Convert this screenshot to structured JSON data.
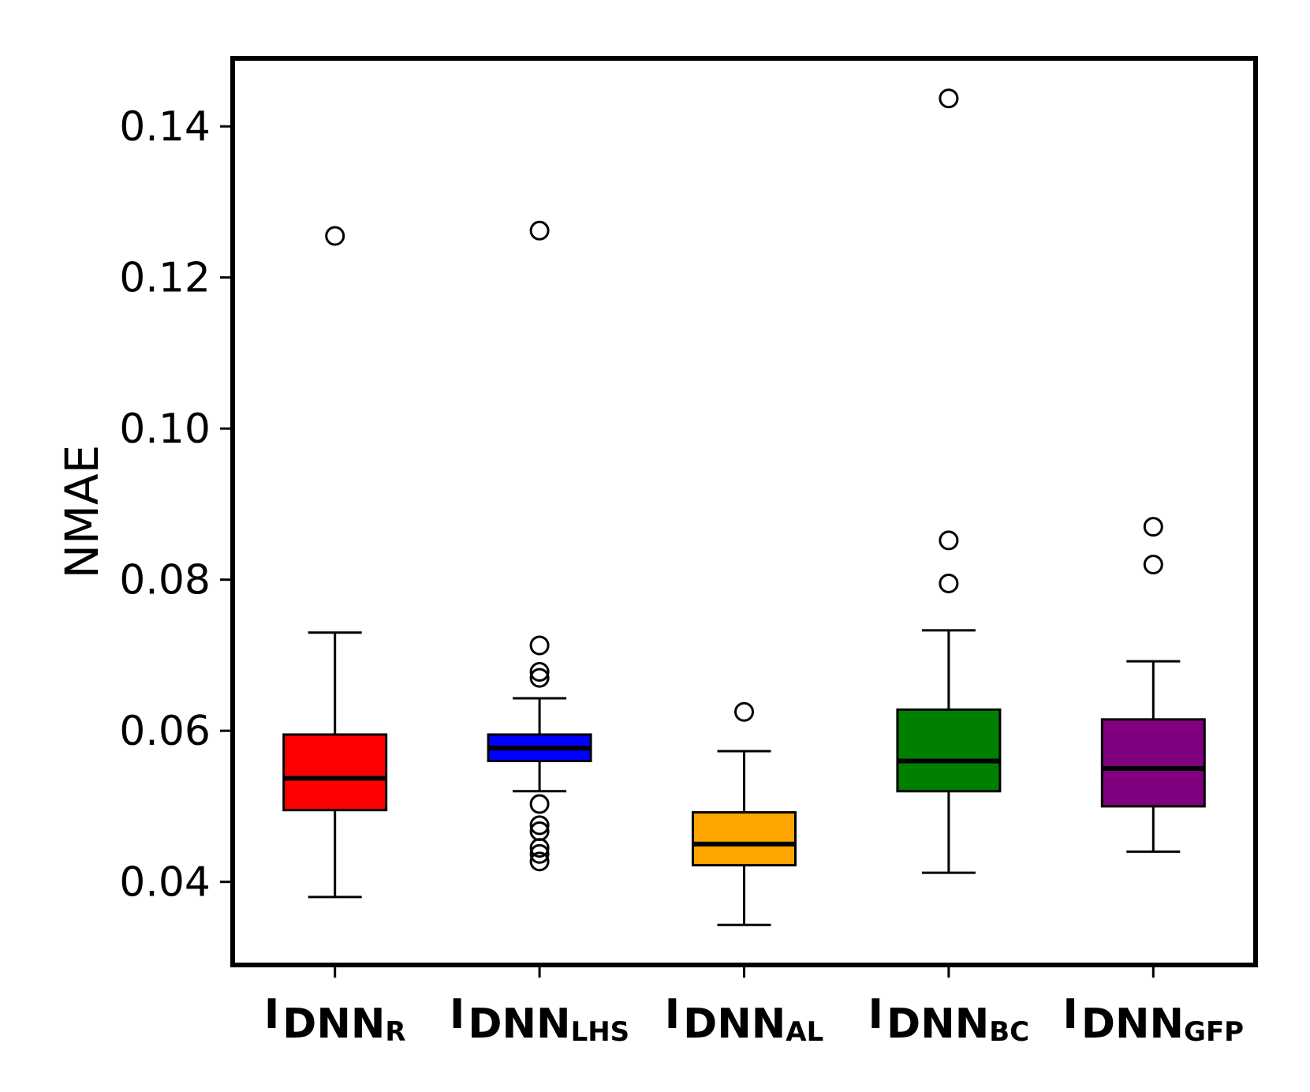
{
  "chart_data": {
    "type": "boxplot",
    "title": "",
    "xlabel": "",
    "ylabel": "NMAE",
    "ylim": [
      0.029,
      0.149
    ],
    "yticks": [
      0.04,
      0.06,
      0.08,
      0.1,
      0.12,
      0.14
    ],
    "ytick_labels": [
      "0.04",
      "0.06",
      "0.08",
      "0.10",
      "0.12",
      "0.14"
    ],
    "grid": false,
    "categories": [
      {
        "main": "I",
        "sub": "DNN",
        "subsub": "R"
      },
      {
        "main": "I",
        "sub": "DNN",
        "subsub": "LHS"
      },
      {
        "main": "I",
        "sub": "DNN",
        "subsub": "AL"
      },
      {
        "main": "I",
        "sub": "DNN",
        "subsub": "BC"
      },
      {
        "main": "I",
        "sub": "DNN",
        "subsub": "GFP"
      }
    ],
    "series": [
      {
        "name": "IDNN_R",
        "color": "#ff0000",
        "whisker_low": 0.038,
        "q1": 0.0495,
        "median": 0.0537,
        "q3": 0.0595,
        "whisker_high": 0.073,
        "outliers": [
          0.1255
        ]
      },
      {
        "name": "IDNN_LHS",
        "color": "#0000ff",
        "whisker_low": 0.052,
        "q1": 0.056,
        "median": 0.0577,
        "q3": 0.0595,
        "whisker_high": 0.0643,
        "outliers": [
          0.0427,
          0.0437,
          0.0445,
          0.0467,
          0.0475,
          0.0503,
          0.067,
          0.0678,
          0.0713,
          0.1262
        ]
      },
      {
        "name": "IDNN_AL",
        "color": "#ffa500",
        "whisker_low": 0.0343,
        "q1": 0.0422,
        "median": 0.045,
        "q3": 0.0492,
        "whisker_high": 0.0573,
        "outliers": [
          0.0625
        ]
      },
      {
        "name": "IDNN_BC",
        "color": "#008000",
        "whisker_low": 0.0412,
        "q1": 0.052,
        "median": 0.056,
        "q3": 0.0628,
        "whisker_high": 0.0733,
        "outliers": [
          0.0795,
          0.0852,
          0.1437
        ]
      },
      {
        "name": "IDNN_GFP",
        "color": "#800080",
        "whisker_low": 0.044,
        "q1": 0.05,
        "median": 0.055,
        "q3": 0.0615,
        "whisker_high": 0.0692,
        "outliers": [
          0.082,
          0.087
        ]
      }
    ]
  }
}
